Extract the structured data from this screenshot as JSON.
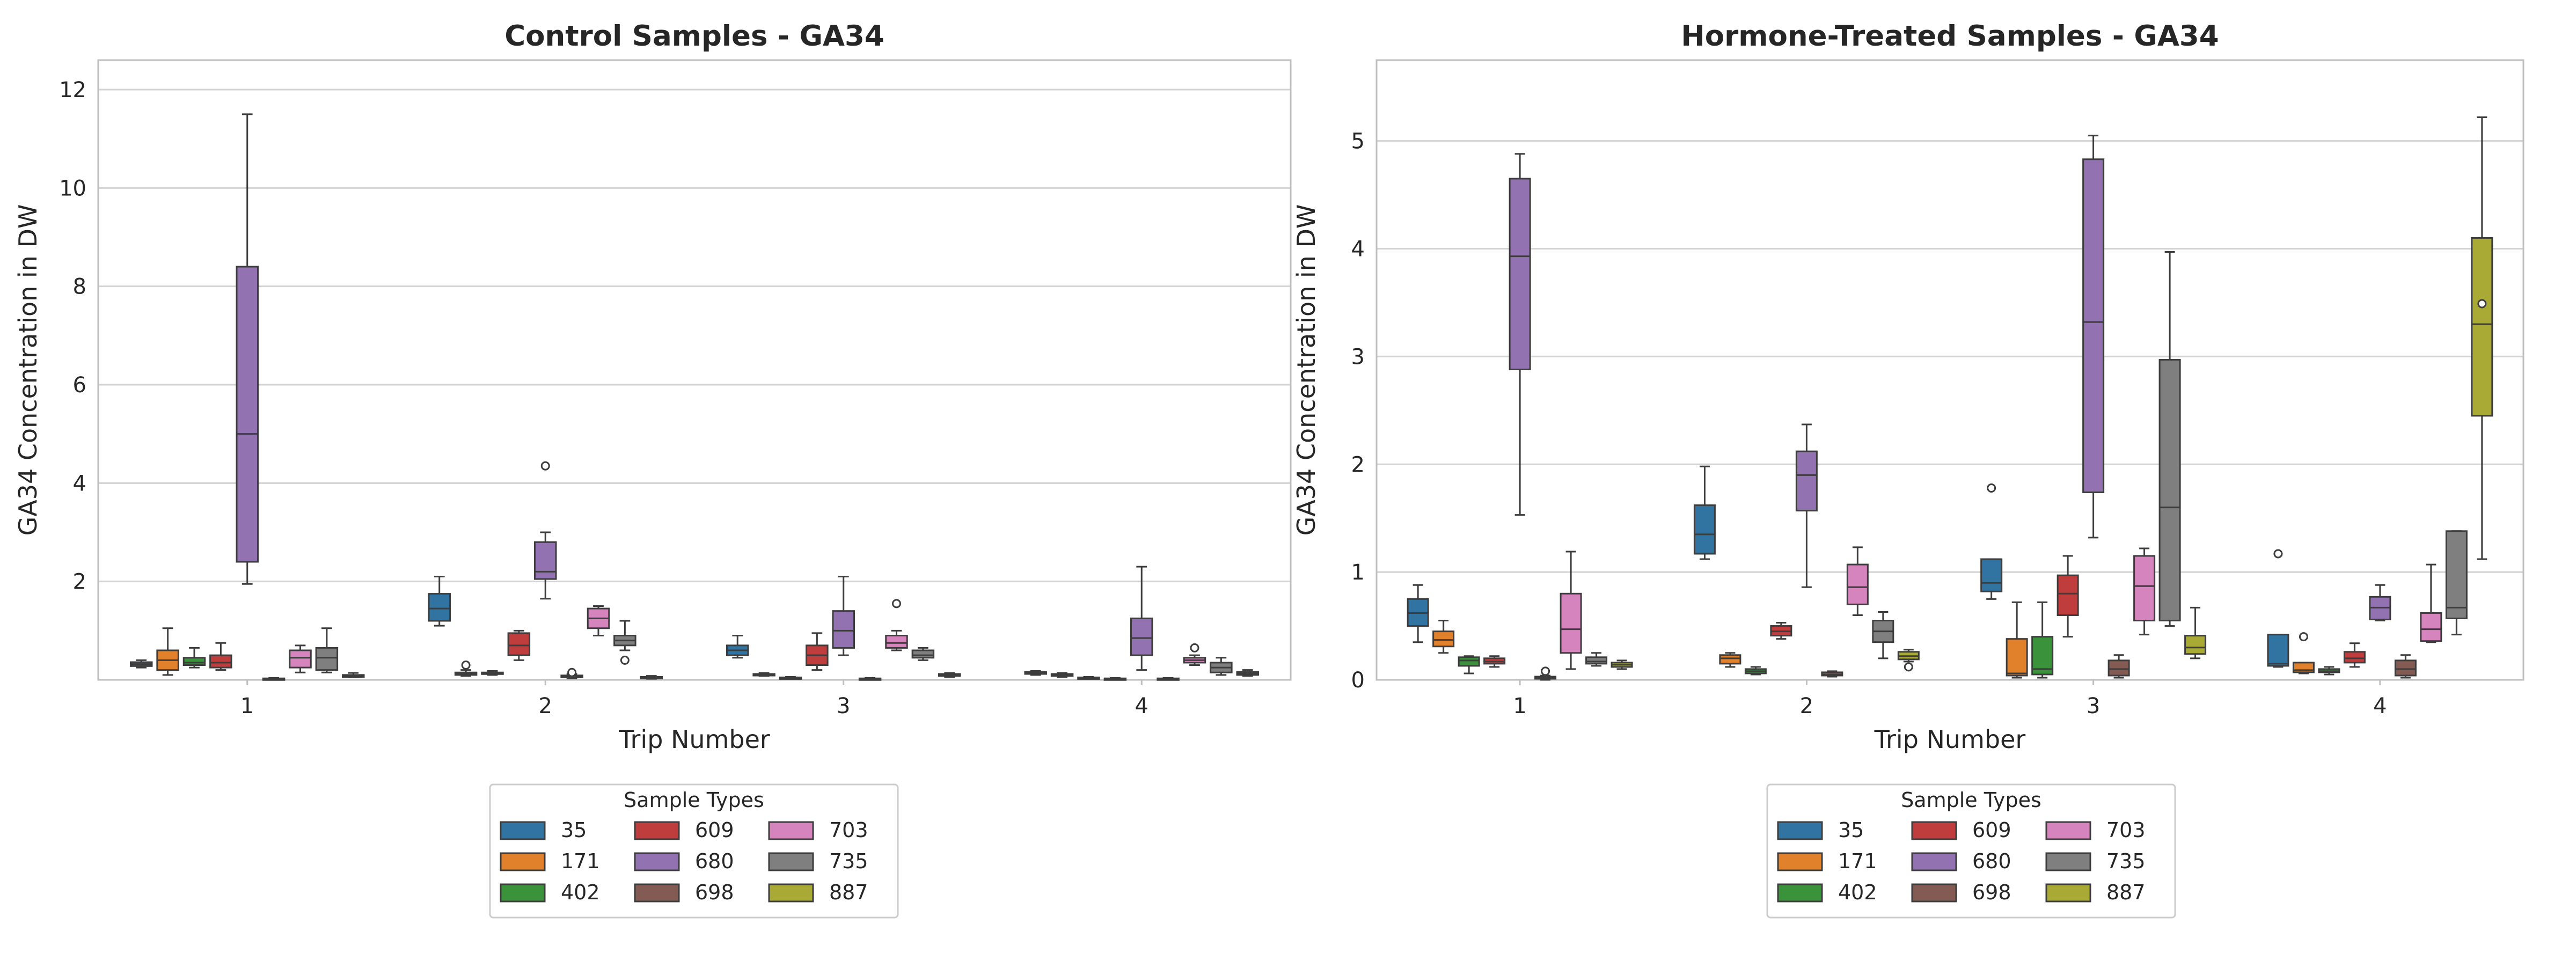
{
  "colors": {
    "35": "#3274a1",
    "171": "#e1812c",
    "402": "#3a923a",
    "609": "#c03d3e",
    "680": "#9372b2",
    "698": "#845b53",
    "703": "#d684bd",
    "735": "#7f7f7f",
    "887": "#a9aa35",
    "grid": "#d3d3d3",
    "frame": "#bfbfbf",
    "median": "#3d3d3d",
    "whisker": "#3d3d3d"
  },
  "chart_data": [
    {
      "type": "box",
      "title": "Control Samples - GA34",
      "xlabel": "Trip Number",
      "ylabel": "GA34 Concentration in DW",
      "categories": [
        "1",
        "2",
        "3",
        "4"
      ],
      "ylim": [
        0,
        12.6
      ],
      "yticks": [
        2,
        4,
        6,
        8,
        10,
        12
      ],
      "grid": "y",
      "legend": {
        "title": "Sample Types",
        "entries": [
          "35",
          "171",
          "402",
          "609",
          "680",
          "698",
          "703",
          "735",
          "887"
        ],
        "placement": "below"
      },
      "series": [
        {
          "name": "35",
          "boxes": [
            {
              "trip": "1",
              "min": 0.25,
              "q1": 0.28,
              "median": 0.32,
              "q3": 0.36,
              "max": 0.4,
              "outliers": []
            },
            {
              "trip": "2",
              "min": 1.1,
              "q1": 1.2,
              "median": 1.45,
              "q3": 1.75,
              "max": 2.1,
              "outliers": []
            },
            {
              "trip": "3",
              "min": 0.45,
              "q1": 0.5,
              "median": 0.6,
              "q3": 0.7,
              "max": 0.9,
              "outliers": []
            },
            {
              "trip": "4",
              "min": 0.1,
              "q1": 0.12,
              "median": 0.14,
              "q3": 0.16,
              "max": 0.18,
              "outliers": []
            }
          ]
        },
        {
          "name": "171",
          "boxes": [
            {
              "trip": "1",
              "min": 0.1,
              "q1": 0.2,
              "median": 0.4,
              "q3": 0.6,
              "max": 1.05,
              "outliers": []
            },
            {
              "trip": "2",
              "min": 0.08,
              "q1": 0.1,
              "median": 0.12,
              "q3": 0.15,
              "max": 0.2,
              "outliers": [
                0.3
              ]
            },
            {
              "trip": "3",
              "min": 0.08,
              "q1": 0.09,
              "median": 0.1,
              "q3": 0.12,
              "max": 0.14,
              "outliers": []
            },
            {
              "trip": "4",
              "min": 0.06,
              "q1": 0.08,
              "median": 0.1,
              "q3": 0.12,
              "max": 0.14,
              "outliers": []
            }
          ]
        },
        {
          "name": "402",
          "boxes": [
            {
              "trip": "1",
              "min": 0.25,
              "q1": 0.3,
              "median": 0.35,
              "q3": 0.45,
              "max": 0.65,
              "outliers": []
            },
            {
              "trip": "2",
              "min": 0.1,
              "q1": 0.12,
              "median": 0.13,
              "q3": 0.15,
              "max": 0.18,
              "outliers": []
            },
            {
              "trip": "3",
              "min": 0.02,
              "q1": 0.03,
              "median": 0.04,
              "q3": 0.05,
              "max": 0.06,
              "outliers": []
            },
            {
              "trip": "4",
              "min": 0.02,
              "q1": 0.03,
              "median": 0.04,
              "q3": 0.05,
              "max": 0.06,
              "outliers": []
            }
          ]
        },
        {
          "name": "609",
          "boxes": [
            {
              "trip": "1",
              "min": 0.2,
              "q1": 0.25,
              "median": 0.35,
              "q3": 0.5,
              "max": 0.75,
              "outliers": []
            },
            {
              "trip": "2",
              "min": 0.4,
              "q1": 0.5,
              "median": 0.7,
              "q3": 0.95,
              "max": 1.0,
              "outliers": []
            },
            {
              "trip": "3",
              "min": 0.2,
              "q1": 0.3,
              "median": 0.5,
              "q3": 0.7,
              "max": 0.95,
              "outliers": []
            },
            {
              "trip": "4",
              "min": 0.0,
              "q1": 0.01,
              "median": 0.02,
              "q3": 0.03,
              "max": 0.04,
              "outliers": []
            }
          ]
        },
        {
          "name": "680",
          "boxes": [
            {
              "trip": "1",
              "min": 1.95,
              "q1": 2.4,
              "median": 5.0,
              "q3": 8.4,
              "max": 11.5,
              "outliers": []
            },
            {
              "trip": "2",
              "min": 1.65,
              "q1": 2.05,
              "median": 2.2,
              "q3": 2.8,
              "max": 3.0,
              "outliers": [
                4.35
              ]
            },
            {
              "trip": "3",
              "min": 0.5,
              "q1": 0.65,
              "median": 1.0,
              "q3": 1.4,
              "max": 2.1,
              "outliers": []
            },
            {
              "trip": "4",
              "min": 0.2,
              "q1": 0.5,
              "median": 0.85,
              "q3": 1.25,
              "max": 2.3,
              "outliers": []
            }
          ]
        },
        {
          "name": "698",
          "boxes": [
            {
              "trip": "1",
              "min": 0.0,
              "q1": 0.01,
              "median": 0.02,
              "q3": 0.03,
              "max": 0.04,
              "outliers": []
            },
            {
              "trip": "2",
              "min": 0.03,
              "q1": 0.05,
              "median": 0.07,
              "q3": 0.09,
              "max": 0.12,
              "outliers": [
                0.15
              ]
            },
            {
              "trip": "3",
              "min": 0.0,
              "q1": 0.01,
              "median": 0.02,
              "q3": 0.03,
              "max": 0.04,
              "outliers": []
            },
            {
              "trip": "4",
              "min": 0.0,
              "q1": 0.01,
              "median": 0.02,
              "q3": 0.03,
              "max": 0.04,
              "outliers": []
            }
          ]
        },
        {
          "name": "703",
          "boxes": [
            {
              "trip": "1",
              "min": 0.15,
              "q1": 0.25,
              "median": 0.45,
              "q3": 0.6,
              "max": 0.7,
              "outliers": []
            },
            {
              "trip": "2",
              "min": 0.9,
              "q1": 1.05,
              "median": 1.25,
              "q3": 1.45,
              "max": 1.5,
              "outliers": []
            },
            {
              "trip": "3",
              "min": 0.6,
              "q1": 0.65,
              "median": 0.75,
              "q3": 0.9,
              "max": 1.0,
              "outliers": [
                1.55
              ]
            },
            {
              "trip": "4",
              "min": 0.3,
              "q1": 0.35,
              "median": 0.4,
              "q3": 0.45,
              "max": 0.5,
              "outliers": [
                0.65
              ]
            }
          ]
        },
        {
          "name": "735",
          "boxes": [
            {
              "trip": "1",
              "min": 0.15,
              "q1": 0.2,
              "median": 0.45,
              "q3": 0.65,
              "max": 1.05,
              "outliers": []
            },
            {
              "trip": "2",
              "min": 0.6,
              "q1": 0.7,
              "median": 0.8,
              "q3": 0.9,
              "max": 1.2,
              "outliers": [
                0.4
              ]
            },
            {
              "trip": "3",
              "min": 0.4,
              "q1": 0.45,
              "median": 0.5,
              "q3": 0.6,
              "max": 0.65,
              "outliers": []
            },
            {
              "trip": "4",
              "min": 0.1,
              "q1": 0.15,
              "median": 0.25,
              "q3": 0.35,
              "max": 0.45,
              "outliers": []
            }
          ]
        },
        {
          "name": "887",
          "boxes": [
            {
              "trip": "1",
              "min": 0.05,
              "q1": 0.06,
              "median": 0.08,
              "q3": 0.1,
              "max": 0.14,
              "outliers": []
            },
            {
              "trip": "2",
              "min": 0.02,
              "q1": 0.03,
              "median": 0.05,
              "q3": 0.06,
              "max": 0.08,
              "outliers": []
            },
            {
              "trip": "3",
              "min": 0.06,
              "q1": 0.08,
              "median": 0.1,
              "q3": 0.12,
              "max": 0.14,
              "outliers": []
            },
            {
              "trip": "4",
              "min": 0.08,
              "q1": 0.1,
              "median": 0.13,
              "q3": 0.16,
              "max": 0.2,
              "outliers": []
            }
          ]
        }
      ]
    },
    {
      "type": "box",
      "title": "Hormone-Treated Samples - GA34",
      "xlabel": "Trip Number",
      "ylabel": "GA34 Concentration in DW",
      "categories": [
        "1",
        "2",
        "3",
        "4"
      ],
      "ylim": [
        0,
        5.75
      ],
      "yticks": [
        0,
        1,
        2,
        3,
        4,
        5
      ],
      "grid": "y",
      "legend": {
        "title": "Sample Types",
        "entries": [
          "35",
          "171",
          "402",
          "609",
          "680",
          "698",
          "703",
          "735",
          "887"
        ],
        "placement": "below"
      },
      "series": [
        {
          "name": "35",
          "boxes": [
            {
              "trip": "1",
              "min": 0.35,
              "q1": 0.5,
              "median": 0.62,
              "q3": 0.75,
              "max": 0.88,
              "outliers": []
            },
            {
              "trip": "2",
              "min": 1.12,
              "q1": 1.17,
              "median": 1.35,
              "q3": 1.62,
              "max": 1.98,
              "outliers": []
            },
            {
              "trip": "3",
              "min": 0.75,
              "q1": 0.82,
              "median": 0.9,
              "q3": 1.12,
              "max": 1.12,
              "outliers": [
                1.78
              ]
            },
            {
              "trip": "4",
              "min": 0.12,
              "q1": 0.13,
              "median": 0.15,
              "q3": 0.42,
              "max": 0.42,
              "outliers": [
                1.17
              ]
            }
          ]
        },
        {
          "name": "171",
          "boxes": [
            {
              "trip": "1",
              "min": 0.25,
              "q1": 0.31,
              "median": 0.37,
              "q3": 0.45,
              "max": 0.55,
              "outliers": []
            },
            {
              "trip": "2",
              "min": 0.12,
              "q1": 0.15,
              "median": 0.2,
              "q3": 0.23,
              "max": 0.25,
              "outliers": []
            },
            {
              "trip": "3",
              "min": 0.02,
              "q1": 0.04,
              "median": 0.06,
              "q3": 0.38,
              "max": 0.72,
              "outliers": []
            },
            {
              "trip": "4",
              "min": 0.06,
              "q1": 0.07,
              "median": 0.09,
              "q3": 0.16,
              "max": 0.16,
              "outliers": [
                0.4
              ]
            }
          ]
        },
        {
          "name": "402",
          "boxes": [
            {
              "trip": "1",
              "min": 0.06,
              "q1": 0.13,
              "median": 0.18,
              "q3": 0.21,
              "max": 0.22,
              "outliers": []
            },
            {
              "trip": "2",
              "min": 0.05,
              "q1": 0.06,
              "median": 0.08,
              "q3": 0.1,
              "max": 0.12,
              "outliers": []
            },
            {
              "trip": "3",
              "min": 0.02,
              "q1": 0.05,
              "median": 0.1,
              "q3": 0.4,
              "max": 0.72,
              "outliers": []
            },
            {
              "trip": "4",
              "min": 0.05,
              "q1": 0.07,
              "median": 0.08,
              "q3": 0.1,
              "max": 0.12,
              "outliers": []
            }
          ]
        },
        {
          "name": "609",
          "boxes": [
            {
              "trip": "1",
              "min": 0.12,
              "q1": 0.15,
              "median": 0.17,
              "q3": 0.2,
              "max": 0.22,
              "outliers": []
            },
            {
              "trip": "2",
              "min": 0.38,
              "q1": 0.41,
              "median": 0.45,
              "q3": 0.5,
              "max": 0.53,
              "outliers": []
            },
            {
              "trip": "3",
              "min": 0.4,
              "q1": 0.6,
              "median": 0.8,
              "q3": 0.97,
              "max": 1.15,
              "outliers": []
            },
            {
              "trip": "4",
              "min": 0.12,
              "q1": 0.16,
              "median": 0.2,
              "q3": 0.26,
              "max": 0.34,
              "outliers": []
            }
          ]
        },
        {
          "name": "680",
          "boxes": [
            {
              "trip": "1",
              "min": 1.53,
              "q1": 2.88,
              "median": 3.93,
              "q3": 4.65,
              "max": 4.88,
              "outliers": []
            },
            {
              "trip": "2",
              "min": 0.86,
              "q1": 1.57,
              "median": 1.9,
              "q3": 2.12,
              "max": 2.37,
              "outliers": []
            },
            {
              "trip": "3",
              "min": 1.32,
              "q1": 1.74,
              "median": 3.32,
              "q3": 4.83,
              "max": 5.05,
              "outliers": []
            },
            {
              "trip": "4",
              "min": 0.55,
              "q1": 0.56,
              "median": 0.67,
              "q3": 0.77,
              "max": 0.88,
              "outliers": []
            }
          ]
        },
        {
          "name": "698",
          "boxes": [
            {
              "trip": "1",
              "min": 0.0,
              "q1": 0.01,
              "median": 0.02,
              "q3": 0.03,
              "max": 0.04,
              "outliers": [
                0.08
              ]
            },
            {
              "trip": "2",
              "min": 0.03,
              "q1": 0.04,
              "median": 0.05,
              "q3": 0.07,
              "max": 0.08,
              "outliers": []
            },
            {
              "trip": "3",
              "min": 0.02,
              "q1": 0.04,
              "median": 0.1,
              "q3": 0.18,
              "max": 0.23,
              "outliers": []
            },
            {
              "trip": "4",
              "min": 0.02,
              "q1": 0.04,
              "median": 0.1,
              "q3": 0.18,
              "max": 0.23,
              "outliers": []
            }
          ]
        },
        {
          "name": "703",
          "boxes": [
            {
              "trip": "1",
              "min": 0.1,
              "q1": 0.25,
              "median": 0.47,
              "q3": 0.8,
              "max": 1.19,
              "outliers": []
            },
            {
              "trip": "2",
              "min": 0.6,
              "q1": 0.7,
              "median": 0.86,
              "q3": 1.07,
              "max": 1.23,
              "outliers": []
            },
            {
              "trip": "3",
              "min": 0.42,
              "q1": 0.55,
              "median": 0.87,
              "q3": 1.15,
              "max": 1.22,
              "outliers": []
            },
            {
              "trip": "4",
              "min": 0.35,
              "q1": 0.36,
              "median": 0.47,
              "q3": 0.62,
              "max": 1.07,
              "outliers": []
            }
          ]
        },
        {
          "name": "735",
          "boxes": [
            {
              "trip": "1",
              "min": 0.13,
              "q1": 0.15,
              "median": 0.17,
              "q3": 0.21,
              "max": 0.25,
              "outliers": []
            },
            {
              "trip": "2",
              "min": 0.2,
              "q1": 0.35,
              "median": 0.45,
              "q3": 0.55,
              "max": 0.63,
              "outliers": []
            },
            {
              "trip": "3",
              "min": 0.5,
              "q1": 0.55,
              "median": 1.6,
              "q3": 2.97,
              "max": 3.97,
              "outliers": []
            },
            {
              "trip": "4",
              "min": 0.42,
              "q1": 0.57,
              "median": 0.67,
              "q3": 1.38,
              "max": 1.38,
              "outliers": []
            }
          ]
        },
        {
          "name": "887",
          "boxes": [
            {
              "trip": "1",
              "min": 0.1,
              "q1": 0.12,
              "median": 0.14,
              "q3": 0.16,
              "max": 0.18,
              "outliers": []
            },
            {
              "trip": "2",
              "min": 0.17,
              "q1": 0.19,
              "median": 0.22,
              "q3": 0.26,
              "max": 0.28,
              "outliers": [
                0.12
              ]
            },
            {
              "trip": "3",
              "min": 0.2,
              "q1": 0.24,
              "median": 0.3,
              "q3": 0.41,
              "max": 0.67,
              "outliers": []
            },
            {
              "trip": "4",
              "min": 1.12,
              "q1": 2.45,
              "median": 3.3,
              "q3": 4.1,
              "max": 5.22,
              "outliers": [
                3.49
              ]
            }
          ]
        }
      ]
    }
  ]
}
